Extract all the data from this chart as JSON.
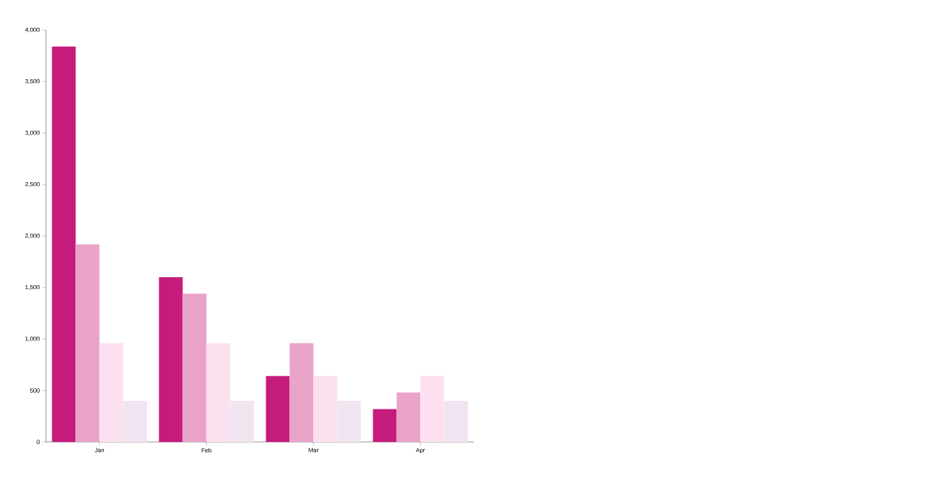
{
  "chart_data": {
    "type": "bar",
    "categories": [
      "Jan",
      "Feb",
      "Mar",
      "Apr"
    ],
    "series": [
      {
        "color": "#c51b7d",
        "values": [
          3840,
          1600,
          640,
          320
        ]
      },
      {
        "color": "#e9a3c9",
        "values": [
          1920,
          1440,
          960,
          480
        ]
      },
      {
        "color": "#fde0ef",
        "values": [
          960,
          960,
          640,
          640
        ]
      },
      {
        "color": "#f0e4f0",
        "values": [
          400,
          400,
          400,
          400
        ]
      }
    ],
    "ylim": [
      0,
      4000
    ],
    "yticks": [
      0,
      {
        "value": 500,
        "label": "500"
      },
      {
        "value": 1000,
        "label": "1,000"
      },
      {
        "value": 1500,
        "label": "1,500"
      },
      {
        "value": 2000,
        "label": "2,000"
      },
      {
        "value": 2500,
        "label": "2,500"
      },
      {
        "value": 3000,
        "label": "3,000"
      },
      {
        "value": 3500,
        "label": "3,500"
      },
      {
        "value": 4000,
        "label": "4,000"
      }
    ]
  }
}
